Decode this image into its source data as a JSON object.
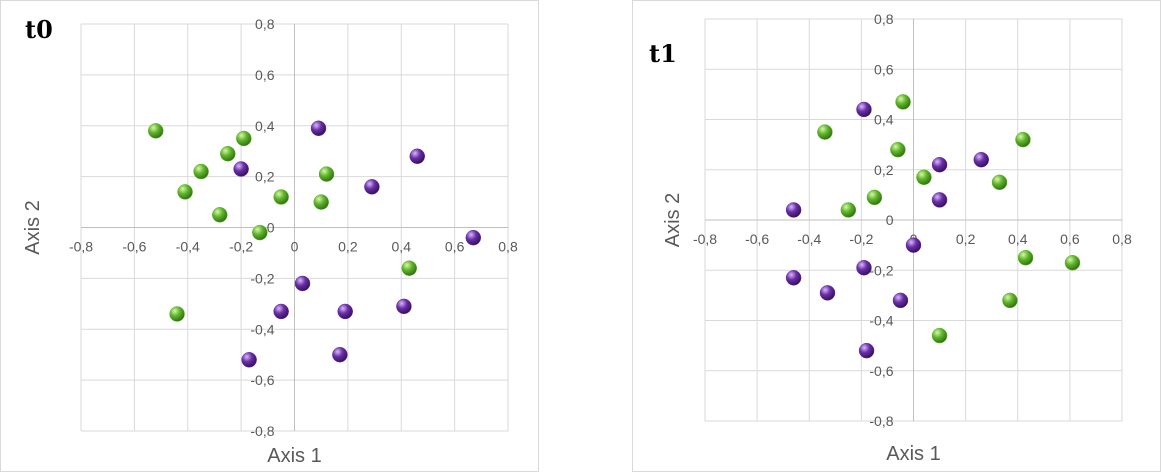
{
  "chart_data": [
    {
      "type": "scatter",
      "title": "t0",
      "xlabel": "Axis 1",
      "ylabel": "Axis 2",
      "xlim": [
        -0.8,
        0.8
      ],
      "ylim": [
        -0.8,
        0.8
      ],
      "xticks": [
        "-0,8",
        "-0,6",
        "-0,4",
        "-0,2",
        "0",
        "0,2",
        "0,4",
        "0,6",
        "0,8"
      ],
      "yticks": [
        "0,8",
        "0,6",
        "0,4",
        "0,2",
        "0",
        "-0,2",
        "-0,4",
        "-0,6",
        "-0,8"
      ],
      "grid": true,
      "colors": {
        "green": "#5fb52c",
        "purple": "#6a2fa5"
      },
      "series": [
        {
          "color": "green",
          "points": [
            [
              -0.52,
              0.38
            ],
            [
              -0.19,
              0.35
            ],
            [
              -0.25,
              0.29
            ],
            [
              -0.35,
              0.22
            ],
            [
              -0.41,
              0.14
            ],
            [
              0.12,
              0.21
            ],
            [
              -0.05,
              0.12
            ],
            [
              0.1,
              0.1
            ],
            [
              -0.28,
              0.05
            ],
            [
              -0.13,
              -0.02
            ],
            [
              0.43,
              -0.16
            ],
            [
              -0.44,
              -0.34
            ]
          ]
        },
        {
          "color": "purple",
          "points": [
            [
              0.09,
              0.39
            ],
            [
              0.46,
              0.28
            ],
            [
              -0.2,
              0.23
            ],
            [
              0.29,
              0.16
            ],
            [
              0.67,
              -0.04
            ],
            [
              0.03,
              -0.22
            ],
            [
              -0.05,
              -0.33
            ],
            [
              0.19,
              -0.33
            ],
            [
              0.41,
              -0.31
            ],
            [
              0.17,
              -0.5
            ],
            [
              -0.17,
              -0.52
            ]
          ]
        }
      ]
    },
    {
      "type": "scatter",
      "title": "t1",
      "xlabel": "Axis 1",
      "ylabel": "Axis 2",
      "xlim": [
        -0.8,
        0.8
      ],
      "ylim": [
        -0.8,
        0.8
      ],
      "xticks": [
        "-0,8",
        "-0,6",
        "-0,4",
        "-0,2",
        "0",
        "0,2",
        "0,4",
        "0,6",
        "0,8"
      ],
      "yticks": [
        "0,8",
        "0,6",
        "0,4",
        "0,2",
        "0",
        "-0,2",
        "-0,4",
        "-0,6",
        "-0,8"
      ],
      "grid": true,
      "colors": {
        "green": "#5fb52c",
        "purple": "#6a2fa5"
      },
      "series": [
        {
          "color": "green",
          "points": [
            [
              -0.04,
              0.47
            ],
            [
              -0.34,
              0.35
            ],
            [
              0.42,
              0.32
            ],
            [
              -0.06,
              0.28
            ],
            [
              0.04,
              0.17
            ],
            [
              0.33,
              0.15
            ],
            [
              -0.15,
              0.09
            ],
            [
              -0.25,
              0.04
            ],
            [
              0.43,
              -0.15
            ],
            [
              0.61,
              -0.17
            ],
            [
              0.37,
              -0.32
            ],
            [
              0.1,
              -0.46
            ]
          ]
        },
        {
          "color": "purple",
          "points": [
            [
              -0.19,
              0.44
            ],
            [
              0.26,
              0.24
            ],
            [
              0.1,
              0.22
            ],
            [
              0.1,
              0.08
            ],
            [
              -0.46,
              0.04
            ],
            [
              0.0,
              -0.1
            ],
            [
              -0.19,
              -0.19
            ],
            [
              -0.46,
              -0.23
            ],
            [
              -0.33,
              -0.29
            ],
            [
              -0.05,
              -0.32
            ],
            [
              -0.18,
              -0.52
            ]
          ]
        }
      ]
    }
  ]
}
